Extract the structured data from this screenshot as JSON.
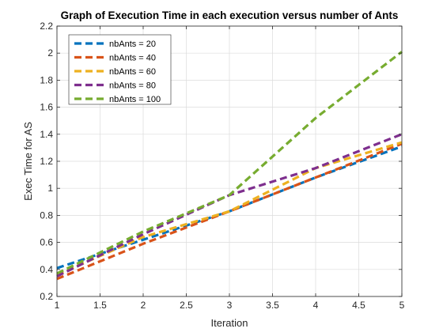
{
  "chart_data": {
    "type": "line",
    "title": "Graph of Execution Time in each execution versus number of Ants",
    "xlabel": "Iteration",
    "ylabel": "Exec Time for AS",
    "xlim": [
      1,
      5
    ],
    "ylim": [
      0.2,
      2.2
    ],
    "xticks": [
      1,
      1.5,
      2,
      2.5,
      3,
      3.5,
      4,
      4.5,
      5
    ],
    "xtick_labels": [
      "1",
      "1.5",
      "2",
      "2.5",
      "3",
      "3.5",
      "4",
      "4.5",
      "5"
    ],
    "yticks": [
      0.2,
      0.4,
      0.6,
      0.8,
      1,
      1.2,
      1.4,
      1.6,
      1.8,
      2,
      2.2
    ],
    "ytick_labels": [
      "0.2",
      "0.4",
      "0.6",
      "0.8",
      "1",
      "1.2",
      "1.4",
      "1.6",
      "1.8",
      "2",
      "2.2"
    ],
    "grid": true,
    "legend_position": "top-left",
    "line_style": "dashed",
    "x": [
      1,
      2,
      3,
      4,
      5
    ],
    "series": [
      {
        "name": "nbAnts = 20",
        "color": "#0072BD",
        "values": [
          0.41,
          0.62,
          0.83,
          1.08,
          1.31
        ]
      },
      {
        "name": "nbAnts = 40",
        "color": "#D95319",
        "values": [
          0.33,
          0.59,
          0.83,
          1.08,
          1.33
        ]
      },
      {
        "name": "nbAnts = 60",
        "color": "#EDB120",
        "values": [
          0.36,
          0.64,
          0.83,
          1.15,
          1.34
        ]
      },
      {
        "name": "nbAnts = 80",
        "color": "#7E2F8E",
        "values": [
          0.35,
          0.66,
          0.95,
          1.15,
          1.4
        ]
      },
      {
        "name": "nbAnts = 100",
        "color": "#77AC30",
        "values": [
          0.37,
          0.68,
          0.95,
          1.52,
          2.01
        ]
      }
    ]
  }
}
